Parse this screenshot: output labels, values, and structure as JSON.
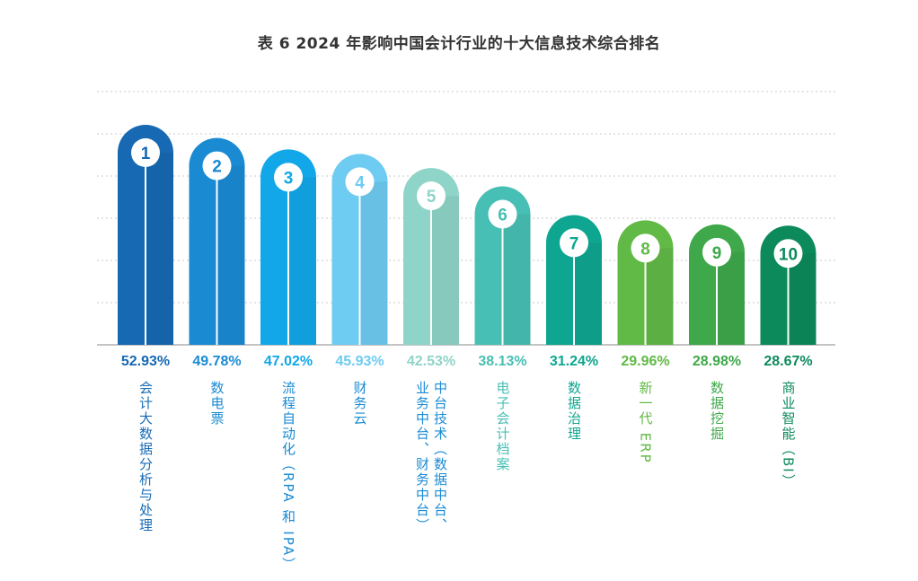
{
  "title": "表 6  2024 年影响中国会计行业的十大信息技术综合排名",
  "chart_data": {
    "type": "bar",
    "title": "表 6  2024 年影响中国会计行业的十大信息技术综合排名",
    "ranks": [
      "1",
      "2",
      "3",
      "4",
      "5",
      "6",
      "7",
      "8",
      "9",
      "10"
    ],
    "categories": [
      "会计大数据分析与处理",
      "数电票",
      "流程自动化（RPA 和 IPA）",
      "财务云",
      "中台技术（数据中台、业务中台、财务中台）",
      "电子会计档案",
      "数据治理",
      "新一代 ERP",
      "数据挖掘",
      "商业智能（BI）"
    ],
    "values": [
      52.93,
      49.78,
      47.02,
      45.93,
      42.53,
      38.13,
      31.24,
      29.96,
      28.98,
      28.67
    ],
    "value_labels": [
      "52.93%",
      "49.78%",
      "47.02%",
      "45.93%",
      "42.53%",
      "38.13%",
      "31.24%",
      "29.96%",
      "28.98%",
      "28.67%"
    ],
    "colors": [
      "#1769b3",
      "#1a8bd3",
      "#12a7e8",
      "#6ecbf1",
      "#8fd4c8",
      "#48bfb4",
      "#0ea690",
      "#61b946",
      "#3ea84a",
      "#0d8a5c"
    ],
    "label_colors": [
      "#1a6cb8",
      "#1a8bd3",
      "#1a8bd3",
      "#1a8bd3",
      "#1a8bd3",
      "#1a8bd3",
      "#1a8bd3",
      "#1a8bd3",
      "#1a8bd3",
      "#1a8bd3"
    ],
    "ylim": [
      0,
      60
    ],
    "grid": true
  }
}
